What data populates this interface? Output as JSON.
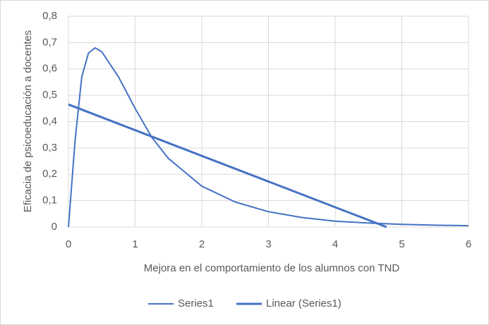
{
  "chart_data": {
    "type": "scatter",
    "x_label": "Mejora en el comportamiento de los alumnos con TND",
    "y_label": "Eficacia de psicoeducación a docentes",
    "xlim": [
      0,
      6
    ],
    "xticks": [
      0,
      1,
      2,
      3,
      4,
      5,
      6
    ],
    "ylim": [
      0,
      0.8
    ],
    "yticks": [
      0,
      {
        "value": 0.1,
        "label": "0,1"
      },
      {
        "value": 0.2,
        "label": "0,2"
      },
      {
        "value": 0.3,
        "label": "0,3"
      },
      {
        "value": 0.4,
        "label": "0,4"
      },
      {
        "value": 0.5,
        "label": "0,5"
      },
      {
        "value": 0.6,
        "label": "0,6"
      },
      {
        "value": 0.7,
        "label": "0,7"
      },
      {
        "value": 0.8,
        "label": "0,8"
      }
    ],
    "grid": true,
    "legend": "bottom",
    "series": [
      {
        "name": "Series1",
        "color": "#4472c4",
        "x": [
          0,
          0.1,
          0.2,
          0.3,
          0.4,
          0.5,
          0.75,
          1,
          1.25,
          1.5,
          2,
          2.5,
          3,
          3.5,
          4,
          4.5,
          5,
          5.5,
          6
        ],
        "values": [
          0,
          0.33,
          0.57,
          0.66,
          0.68,
          0.665,
          0.57,
          0.45,
          0.34,
          0.26,
          0.155,
          0.095,
          0.058,
          0.036,
          0.022,
          0.015,
          0.01,
          0.007,
          0.005
        ]
      },
      {
        "name": "Linear (Series1)",
        "color": "#4472c4",
        "x": [
          0,
          4.77
        ],
        "values": [
          0.465,
          0
        ]
      }
    ]
  }
}
